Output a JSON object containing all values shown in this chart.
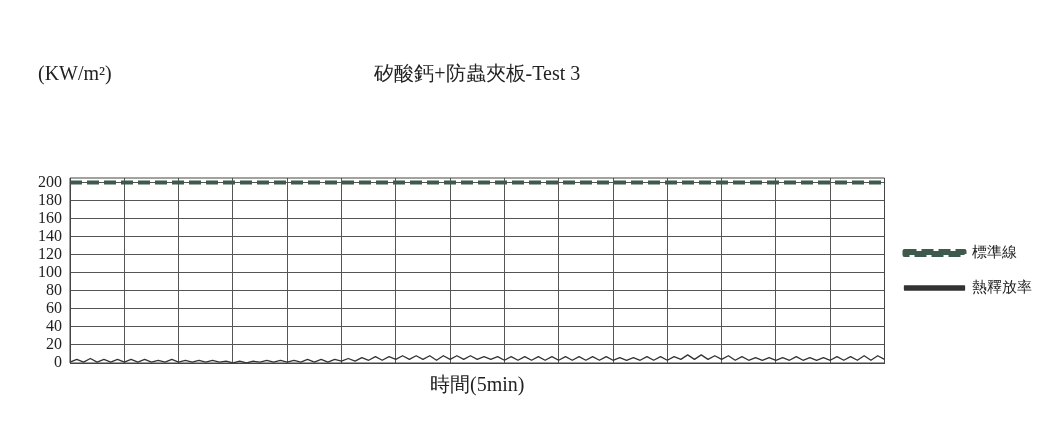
{
  "chart_data": {
    "type": "line",
    "title": "矽酸鈣+防蟲夾板-Test 3",
    "xlabel": "時間(5min)",
    "ylabel": "(KW/m²)",
    "categories": [
      null,
      null,
      null,
      null,
      null,
      null,
      null,
      null,
      null,
      null,
      null,
      null,
      null,
      null,
      null,
      null,
      null,
      null,
      null,
      null,
      null,
      null,
      null,
      null,
      null,
      null,
      null,
      null,
      null,
      null,
      null,
      null,
      null,
      null,
      null,
      null,
      null,
      null,
      null,
      null,
      null,
      null,
      null,
      null,
      null,
      null,
      null,
      null,
      null,
      null,
      null,
      null,
      null,
      null,
      null,
      null,
      null,
      null,
      null,
      null,
      null,
      null,
      null,
      null,
      null,
      null,
      null,
      null,
      null,
      null,
      null,
      null,
      null,
      null,
      null,
      null,
      null,
      null,
      null,
      null,
      null,
      null,
      null,
      null,
      null,
      null,
      null,
      null,
      null,
      null,
      null,
      null,
      null,
      null,
      null,
      null,
      null,
      null,
      null,
      null,
      null,
      null,
      null,
      null,
      null,
      null,
      null,
      null,
      null,
      null,
      null,
      null,
      null,
      null,
      null,
      null,
      null,
      null,
      null,
      null,
      null
    ],
    "ylim": [
      0,
      205
    ],
    "yticks": [
      0,
      20,
      40,
      60,
      80,
      100,
      120,
      140,
      160,
      180,
      200
    ],
    "tick_labels": "y",
    "grid": true,
    "legend": "right",
    "marker": "none",
    "series": [
      {
        "name": "標準線",
        "color": "#3d5a4c",
        "line_style": "dashed",
        "values": [
          200,
          200,
          200,
          200,
          200,
          200,
          200,
          200,
          200,
          200,
          200,
          200,
          200,
          200,
          200,
          200,
          200,
          200,
          200,
          200,
          200,
          200,
          200,
          200,
          200,
          200,
          200,
          200,
          200,
          200,
          200,
          200,
          200,
          200,
          200,
          200,
          200,
          200,
          200,
          200,
          200,
          200,
          200,
          200,
          200,
          200,
          200,
          200,
          200,
          200,
          200,
          200,
          200,
          200,
          200,
          200,
          200,
          200,
          200,
          200,
          200,
          200,
          200,
          200,
          200,
          200,
          200,
          200,
          200,
          200,
          200,
          200,
          200,
          200,
          200,
          200,
          200,
          200,
          200,
          200,
          200,
          200,
          200,
          200,
          200,
          200,
          200,
          200,
          200,
          200,
          200,
          200,
          200,
          200,
          200,
          200,
          200,
          200,
          200,
          200,
          200,
          200,
          200,
          200,
          200,
          200,
          200,
          200,
          200,
          200,
          200,
          200,
          200,
          200,
          200,
          200,
          200,
          200,
          200,
          200,
          200
        ]
      },
      {
        "name": "熱釋放率",
        "color": "#333333",
        "line_style": "solid",
        "values": [
          1,
          4,
          1,
          5,
          1,
          4,
          1,
          4,
          1,
          4,
          1,
          4,
          1,
          3,
          1,
          4,
          1,
          3,
          1,
          3,
          1,
          3,
          1,
          2,
          0,
          2,
          0,
          2,
          1,
          3,
          1,
          3,
          1,
          3,
          1,
          4,
          1,
          4,
          1,
          4,
          2,
          5,
          2,
          6,
          3,
          7,
          3,
          7,
          4,
          8,
          4,
          8,
          4,
          8,
          3,
          8,
          4,
          8,
          4,
          8,
          4,
          7,
          4,
          7,
          3,
          7,
          3,
          7,
          3,
          7,
          3,
          7,
          3,
          7,
          3,
          7,
          3,
          7,
          3,
          7,
          3,
          6,
          3,
          6,
          3,
          7,
          3,
          7,
          3,
          7,
          4,
          9,
          4,
          9,
          4,
          8,
          4,
          8,
          3,
          7,
          3,
          6,
          3,
          6,
          3,
          6,
          3,
          7,
          3,
          6,
          3,
          6,
          3,
          7,
          3,
          7,
          3,
          8,
          3,
          8,
          4
        ]
      }
    ]
  }
}
